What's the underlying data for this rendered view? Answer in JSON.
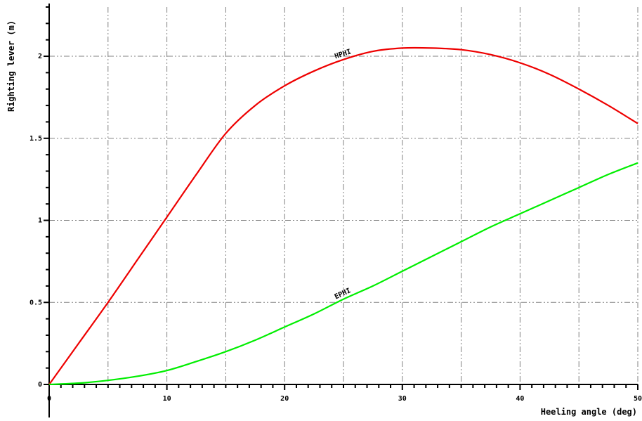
{
  "chart_data": {
    "type": "line",
    "xlabel": "Heeling angle (deg)",
    "ylabel": "Righting lever (m)",
    "xlim": [
      0,
      50
    ],
    "ylim": [
      0,
      2.3
    ],
    "x_ticks": [
      0,
      10,
      20,
      30,
      40,
      50
    ],
    "x_tick_labels": [
      "0",
      "10",
      "20",
      "30",
      "40",
      "50"
    ],
    "y_ticks": [
      0,
      0.5,
      1,
      1.5,
      2
    ],
    "y_tick_labels": [
      "0",
      "0.5",
      "1",
      "1.5",
      "2"
    ],
    "grid": true,
    "series": [
      {
        "name": "HPHI",
        "color": "#ee0000",
        "x": [
          0,
          2.5,
          5,
          7.5,
          10,
          12.5,
          15,
          17.5,
          20,
          22.5,
          25,
          27.5,
          30,
          32.5,
          35,
          37.5,
          40,
          42.5,
          45,
          47.5,
          50
        ],
        "y": [
          0,
          0.25,
          0.5,
          0.76,
          1.02,
          1.28,
          1.53,
          1.7,
          1.82,
          1.91,
          1.98,
          2.03,
          2.05,
          2.05,
          2.04,
          2.01,
          1.96,
          1.89,
          1.8,
          1.7,
          1.59
        ]
      },
      {
        "name": "EPHI",
        "color": "#00ee00",
        "x": [
          0,
          2.5,
          5,
          7.5,
          10,
          12.5,
          15,
          17.5,
          20,
          22.5,
          25,
          27.5,
          30,
          32.5,
          35,
          37.5,
          40,
          42.5,
          45,
          47.5,
          50
        ],
        "y": [
          0,
          0.008,
          0.025,
          0.05,
          0.085,
          0.14,
          0.2,
          0.27,
          0.35,
          0.43,
          0.52,
          0.6,
          0.69,
          0.78,
          0.87,
          0.96,
          1.04,
          1.12,
          1.2,
          1.28,
          1.35
        ]
      }
    ]
  }
}
